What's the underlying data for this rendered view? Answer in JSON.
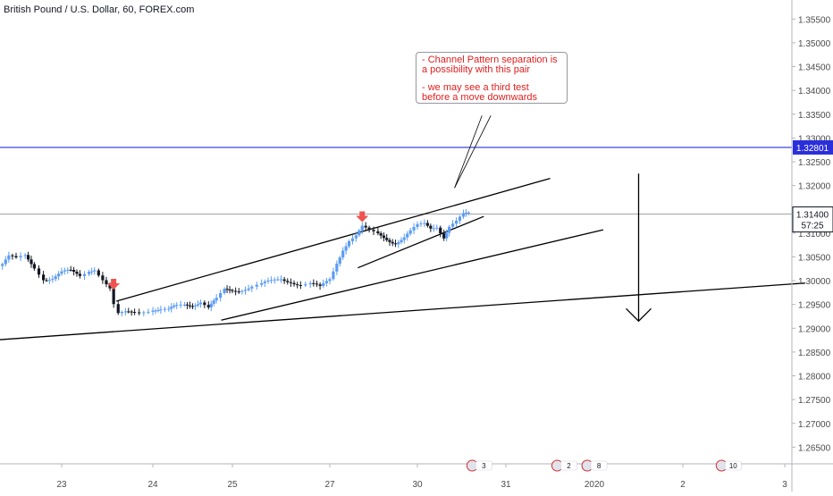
{
  "title": "British Pound / U.S. Dollar, 60, FOREX.com",
  "annotation": {
    "line1": "- Channel Pattern separation is",
    "line2": "a possibility with this pair",
    "line3": "- we may see a third test",
    "line4": "before a move downwards"
  },
  "price_labels": {
    "level": "1.32801",
    "current": "1.31400",
    "countdown": "57:25"
  },
  "colors": {
    "bull": "#5b9cf6",
    "bear": "#131722",
    "level_line": "#2b2fd9",
    "annotation_text": "#e21d1d",
    "marker": "#ef5350",
    "axis_text": "#4a4a4a"
  },
  "events": [
    {
      "label": "3",
      "icon": "us-flag-icon"
    },
    {
      "label": "2",
      "icon": "us-flag-icon"
    },
    {
      "label": "8",
      "icon": "us-flag-icon"
    },
    {
      "label": "10",
      "icon": "uk-flag-icon"
    }
  ],
  "chart_data": {
    "type": "candlestick",
    "title": "British Pound / U.S. Dollar, 60, FOREX.com",
    "x_ticks": [
      {
        "label": "23",
        "t": 0.0
      },
      {
        "label": "24",
        "t": 1.0
      },
      {
        "label": "25",
        "t": 2.0
      },
      {
        "label": "27",
        "t": 3.0
      },
      {
        "label": "30",
        "t": 4.0
      },
      {
        "label": "31",
        "t": 5.0
      },
      {
        "label": "2020",
        "t": 6.0
      },
      {
        "label": "2",
        "t": 7.0
      },
      {
        "label": "3",
        "t": 8.0
      }
    ],
    "y_ticks": [
      "1.35500",
      "1.35000",
      "1.34500",
      "1.34000",
      "1.33500",
      "1.33000",
      "1.32500",
      "1.32000",
      "1.31500",
      "1.31000",
      "1.30500",
      "1.30000",
      "1.29500",
      "1.29000",
      "1.28500",
      "1.28000",
      "1.27500",
      "1.27000",
      "1.26500"
    ],
    "ylim": [
      1.2615,
      1.359
    ],
    "series": [
      {
        "close_points": [
          [
            -0.65,
            1.3035
          ],
          [
            -0.58,
            1.3048
          ],
          [
            -0.5,
            1.3042
          ],
          [
            -0.4,
            1.305
          ],
          [
            -0.3,
            1.303
          ],
          [
            -0.2,
            1.3008
          ],
          [
            -0.1,
            1.3006
          ],
          [
            0.0,
            1.3014
          ],
          [
            0.1,
            1.3017
          ],
          [
            0.2,
            1.3012
          ],
          [
            0.3,
            1.3025
          ],
          [
            0.36,
            1.3028
          ],
          [
            0.45,
            1.3003
          ],
          [
            0.53,
            1.298
          ],
          [
            0.57,
            1.2945
          ],
          [
            0.62,
            1.2925
          ],
          [
            0.7,
            1.293
          ],
          [
            0.8,
            1.2936
          ],
          [
            0.9,
            1.294
          ],
          [
            1.0,
            1.2943
          ],
          [
            1.1,
            1.2938
          ],
          [
            1.2,
            1.2935
          ],
          [
            1.3,
            1.2944
          ],
          [
            1.4,
            1.295
          ],
          [
            1.5,
            1.2953
          ],
          [
            1.6,
            1.2958
          ],
          [
            1.7,
            1.2942
          ],
          [
            1.8,
            1.2957
          ],
          [
            1.9,
            1.2978
          ],
          [
            2.0,
            1.2982
          ],
          [
            2.1,
            1.2985
          ],
          [
            2.2,
            1.2988
          ],
          [
            2.3,
            1.299
          ],
          [
            2.4,
            1.2995
          ],
          [
            2.5,
            1.3004
          ],
          [
            2.6,
            1.3002
          ],
          [
            2.7,
            1.2993
          ],
          [
            2.8,
            1.2992
          ],
          [
            2.9,
            1.2982
          ],
          [
            3.0,
            1.3002
          ],
          [
            3.08,
            1.304
          ],
          [
            3.15,
            1.307
          ],
          [
            3.22,
            1.3088
          ],
          [
            3.3,
            1.3095
          ],
          [
            3.37,
            1.311
          ],
          [
            3.45,
            1.31
          ],
          [
            3.55,
            1.3096
          ],
          [
            3.65,
            1.309
          ],
          [
            3.75,
            1.3083
          ],
          [
            3.85,
            1.309
          ],
          [
            3.92,
            1.31
          ],
          [
            4.0,
            1.3112
          ],
          [
            4.08,
            1.3118
          ],
          [
            4.15,
            1.3112
          ],
          [
            4.22,
            1.3118
          ],
          [
            4.3,
            1.3095
          ],
          [
            4.36,
            1.3115
          ],
          [
            4.44,
            1.3122
          ],
          [
            4.52,
            1.3135
          ],
          [
            4.58,
            1.3138
          ]
        ]
      }
    ],
    "horizontal_level": 1.32801,
    "current_price": 1.314,
    "trendlines": [
      {
        "name": "upper-channel",
        "from": [
          0.6,
          1.2957
        ],
        "to": [
          5.5,
          1.3215
        ]
      },
      {
        "name": "inner-channel",
        "from": [
          3.32,
          1.3027
        ],
        "to": [
          4.75,
          1.3135
        ]
      },
      {
        "name": "middle-support",
        "from": [
          1.86,
          1.2917
        ],
        "to": [
          6.1,
          1.3107
        ]
      },
      {
        "name": "long-support",
        "from": [
          -0.75,
          1.2875
        ],
        "to": [
          8.2,
          1.2995
        ]
      },
      {
        "name": "annotation-pointer-1",
        "from": [
          4.42,
          1.3195
        ],
        "to": [
          4.83,
          1.3347
        ]
      },
      {
        "name": "annotation-pointer-2",
        "from": [
          4.42,
          1.3195
        ],
        "to": [
          4.73,
          1.3347
        ]
      }
    ],
    "down_arrow": {
      "t": 6.5,
      "from": 1.3225,
      "to": 1.2915
    },
    "markers": [
      {
        "name": "sell-marker-1",
        "t": 0.57,
        "price": 1.2985
      },
      {
        "name": "sell-marker-2",
        "t": 3.37,
        "price": 1.3127
      }
    ]
  }
}
